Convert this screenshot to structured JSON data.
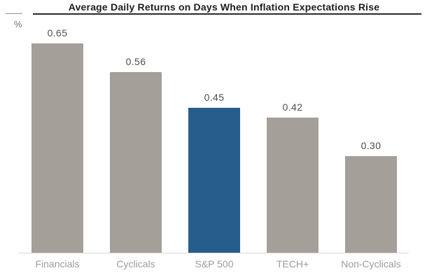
{
  "chart_data": {
    "type": "bar",
    "title": "Average Daily Returns on Days When Inflation Expectations Rise",
    "ylabel": "%",
    "xlabel": "",
    "categories": [
      "Financials",
      "Cyclicals",
      "S&P 500",
      "TECH+",
      "Non-Cyclicals"
    ],
    "values": [
      0.65,
      0.56,
      0.45,
      0.42,
      0.3
    ],
    "value_labels": [
      "0.65",
      "0.56",
      "0.45",
      "0.42",
      "0.30"
    ],
    "highlight_index": 2,
    "highlight_category": "S&P 500",
    "ylim": [
      0,
      0.78
    ],
    "grid": false,
    "legend": false,
    "value_labels_position": "above-bars"
  },
  "colors": {
    "bar_default": "#a59f99",
    "bar_highlight": "#275d8c",
    "title_text": "#1d1d1b",
    "value_label": "#4f4f4f",
    "category_label": "#9c9c9c",
    "baseline": "#d8d6d3",
    "title_underline": "#2b2b2b",
    "left_tick": "#8f8f8f",
    "background": "#ffffff"
  }
}
